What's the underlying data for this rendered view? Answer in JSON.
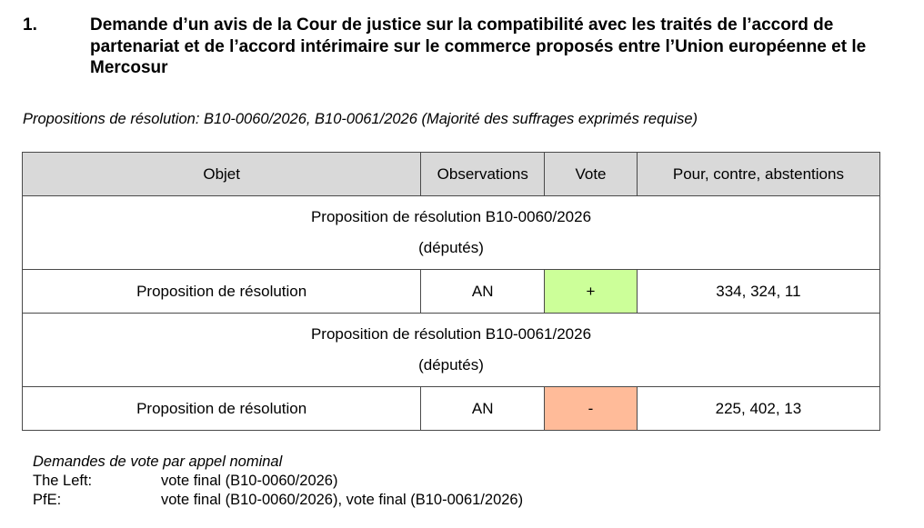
{
  "heading": {
    "number": "1.",
    "title": "Demande d’un avis de la Cour de justice sur la compatibilité avec les traités de l’accord de partenariat et de l’accord intérimaire sur le commerce proposés entre l’Union européenne et le Mercosur"
  },
  "subtitle": "Propositions de résolution: B10-0060/2026, B10-0061/2026 (Majorité des suffrages exprimés requise)",
  "table": {
    "headers": {
      "objet": "Objet",
      "observations": "Observations",
      "vote": "Vote",
      "pour_contre": "Pour, contre, abstentions"
    },
    "groups": [
      {
        "title": "Proposition de résolution B10-0060/2026",
        "subtitle": "(députés)",
        "row": {
          "objet": "Proposition de résolution",
          "observations": "AN",
          "vote": "+",
          "vote_color": "#ccff99",
          "result": "334, 324, 11"
        }
      },
      {
        "title": "Proposition de résolution B10-0061/2026",
        "subtitle": "(députés)",
        "row": {
          "objet": "Proposition de résolution",
          "observations": "AN",
          "vote": "-",
          "vote_color": "#ffbb99",
          "result": "225, 402, 13"
        }
      }
    ]
  },
  "notes": {
    "title": "Demandes de vote par appel nominal",
    "lines": [
      {
        "group": "The Left:",
        "text": "vote final (B10-0060/2026)"
      },
      {
        "group": "PfE:",
        "text": "vote final (B10-0060/2026), vote final (B10-0061/2026)"
      }
    ]
  }
}
